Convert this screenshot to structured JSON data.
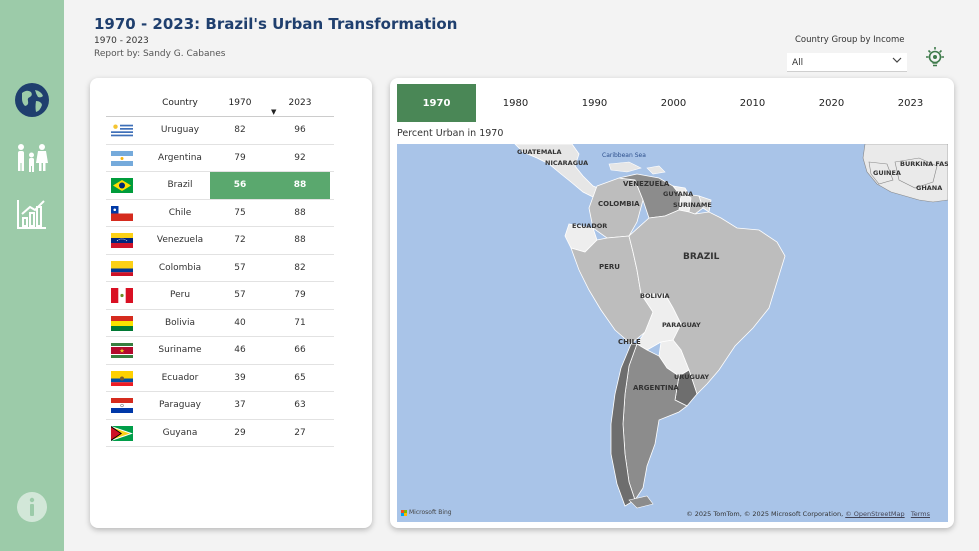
{
  "header": {
    "title": "1970 - 2023: Brazil's Urban Transformation",
    "subtitle": "1970 - 2023",
    "author": "Report by: Sandy G. Cabanes"
  },
  "filter": {
    "label": "Country Group by Income",
    "value": "All"
  },
  "sidebar": {
    "icons": [
      "globe-icon",
      "family-icon",
      "bar-chart-icon",
      "info-icon"
    ]
  },
  "table": {
    "columns": [
      "Country",
      "1970",
      "2023"
    ],
    "sorted_column": "2023",
    "rows": [
      {
        "country": "Uruguay",
        "y1970": "82",
        "y2023": "96",
        "flag": "uruguay"
      },
      {
        "country": "Argentina",
        "y1970": "79",
        "y2023": "92",
        "flag": "argentina"
      },
      {
        "country": "Brazil",
        "y1970": "56",
        "y2023": "88",
        "flag": "brazil",
        "highlight": true
      },
      {
        "country": "Chile",
        "y1970": "75",
        "y2023": "88",
        "flag": "chile"
      },
      {
        "country": "Venezuela",
        "y1970": "72",
        "y2023": "88",
        "flag": "venezuela"
      },
      {
        "country": "Colombia",
        "y1970": "57",
        "y2023": "82",
        "flag": "colombia"
      },
      {
        "country": "Peru",
        "y1970": "57",
        "y2023": "79",
        "flag": "peru"
      },
      {
        "country": "Bolivia",
        "y1970": "40",
        "y2023": "71",
        "flag": "bolivia"
      },
      {
        "country": "Suriname",
        "y1970": "46",
        "y2023": "66",
        "flag": "suriname"
      },
      {
        "country": "Ecuador",
        "y1970": "39",
        "y2023": "65",
        "flag": "ecuador"
      },
      {
        "country": "Paraguay",
        "y1970": "37",
        "y2023": "63",
        "flag": "paraguay"
      },
      {
        "country": "Guyana",
        "y1970": "29",
        "y2023": "27",
        "flag": "guyana"
      }
    ]
  },
  "years": {
    "tabs": [
      "1970",
      "1980",
      "1990",
      "2000",
      "2010",
      "2020",
      "2023"
    ],
    "selected": "1970"
  },
  "map": {
    "title": "Percent Urban in 1970",
    "labels": {
      "guatemala": "GUATEMALA",
      "nicaragua": "NICARAGUA",
      "caribbean": "Caribbean Sea",
      "venezuela": "VENEZUELA",
      "guyana": "GUYANA",
      "suriname": "SURINAME",
      "colombia": "COLOMBIA",
      "ecuador": "ECUADOR",
      "brazil": "BRAZIL",
      "peru": "PERU",
      "bolivia": "BOLIVIA",
      "paraguay": "PARAGUAY",
      "chile": "CHILE",
      "uruguay": "URUGUAY",
      "argentina": "ARGENTINA",
      "guinea": "GUINEA",
      "burkina": "BURKINA FASO",
      "ghana": "GHANA"
    },
    "attribution_logo": "Microsoft Bing",
    "copyright_text": "© 2025 TomTom, © 2025 Microsoft Corporation,",
    "osm_link": "© OpenStreetMap",
    "terms_link": "Terms",
    "colors": {
      "ocean": "#a9c4e8",
      "high": "#6e6e6e",
      "mid_high": "#8c8c8c",
      "mid": "#a8a8a8",
      "low": "#eeeeee",
      "no_data": "#bdbdbd"
    }
  },
  "colors": {
    "accent_green": "#4a8756",
    "highlight_green": "#5aa86e",
    "rail_green": "#9ccba9",
    "title_blue": "#1f3f6e"
  }
}
